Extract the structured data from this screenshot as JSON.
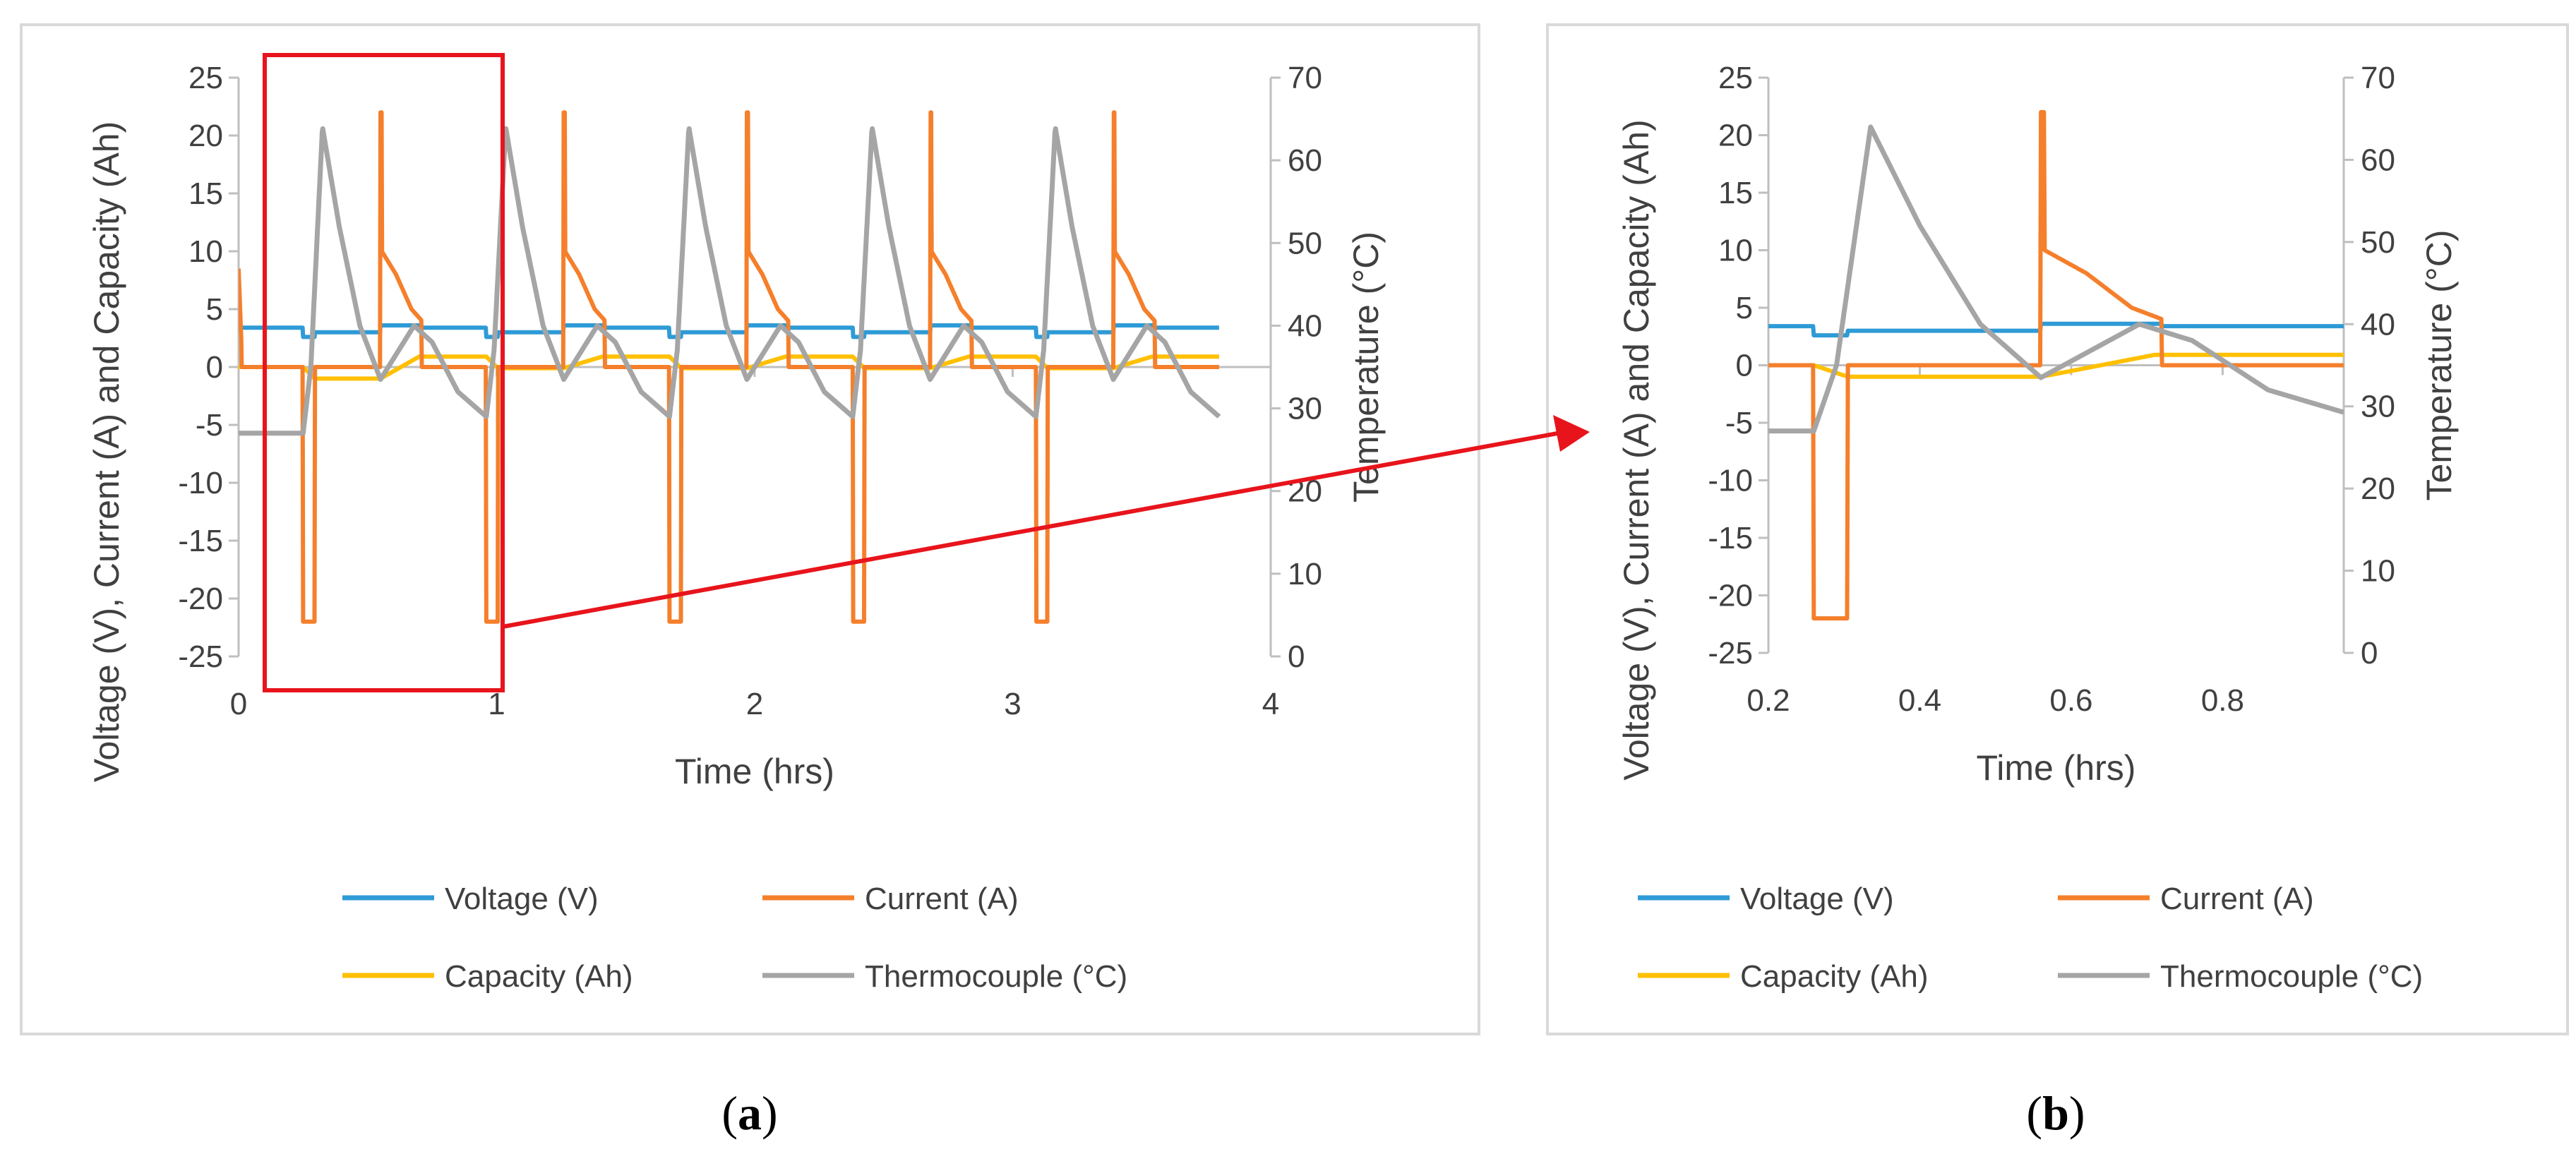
{
  "figure": {
    "captions": [
      {
        "prefix": "(",
        "letter": "a",
        "suffix": ")"
      },
      {
        "prefix": "(",
        "letter": "b",
        "suffix": ")"
      }
    ]
  },
  "colors": {
    "voltage": "#2E9BD6",
    "current": "#F57F2B",
    "capacity": "#FFC000",
    "thermocouple": "#A5A5A5",
    "highlight": "#E8141C",
    "axis": "#BFBFBF",
    "text": "#404040",
    "panel_border": "#D9D9D9"
  },
  "chart_data": [
    {
      "id": "a",
      "type": "line",
      "xlabel": "Time (hrs)",
      "ylabel": "Voltage (V), Current (A) and Capacity (Ah)",
      "y2label": "Temperature (°C)",
      "xlim": [
        0,
        4
      ],
      "xticks": [
        "0",
        "1",
        "2",
        "3",
        "4"
      ],
      "ylim": [
        -25,
        25
      ],
      "yticks": [
        "-25",
        "-20",
        "-15",
        "-10",
        "-5",
        "0",
        "5",
        "10",
        "15",
        "20",
        "25"
      ],
      "y2lim": [
        0,
        70
      ],
      "y2ticks": [
        "0",
        "10",
        "20",
        "30",
        "40",
        "50",
        "60",
        "70"
      ],
      "cycle": {
        "start_times": [
          0.25,
          0.96,
          1.67,
          2.38,
          3.09
        ],
        "period": 0.71,
        "end_time": 3.8
      },
      "legend": [
        "Voltage (V)",
        "Current (A)",
        "Capacity (Ah)",
        "Thermocouple (°C)"
      ],
      "legend_position": "bottom",
      "highlight_region": {
        "x": [
          0.1,
          1.0
        ],
        "y": [
          -25,
          25
        ]
      },
      "series": [
        {
          "name": "Voltage (V)",
          "axis": "left",
          "values": "~3.4 V rest, dips to ~2.6 V during each discharge pulse, ~3.6 V during charge"
        },
        {
          "name": "Current (A)",
          "axis": "left",
          "values": "discharge pulses to -22 A (~0.05 h), charge spike to 22 A then taper from ~10 A to ~4 A, then 0 A"
        },
        {
          "name": "Capacity (Ah)",
          "axis": "left",
          "values": "ramps between ~-1 Ah and ~1 Ah each cycle"
        },
        {
          "name": "Thermocouple (°C)",
          "axis": "right",
          "values": "starts ~27 °C, peaks ~64 °C after each pulse, dips ~33–34 °C, secondary bump ~40 °C, decays to ~29 °C"
        }
      ]
    },
    {
      "id": "b",
      "type": "line",
      "xlabel": "Time (hrs)",
      "ylabel": "Voltage (V), Current (A) and Capacity (Ah)",
      "y2label": "Temperature (°C)",
      "xlim": [
        0.2,
        0.96
      ],
      "xticks": [
        "0.2",
        "0.4",
        "0.6",
        "0.8"
      ],
      "xtick_values": [
        0.2,
        0.4,
        0.6,
        0.8
      ],
      "ylim": [
        -25,
        25
      ],
      "yticks": [
        "-25",
        "-20",
        "-15",
        "-10",
        "-5",
        "0",
        "5",
        "10",
        "15",
        "20",
        "25"
      ],
      "y2lim": [
        0,
        70
      ],
      "y2ticks": [
        "0",
        "10",
        "20",
        "30",
        "40",
        "50",
        "60",
        "70"
      ],
      "legend": [
        "Voltage (V)",
        "Current (A)",
        "Capacity (Ah)",
        "Thermocouple (°C)"
      ],
      "legend_position": "bottom",
      "series": [
        {
          "name": "Voltage (V)",
          "axis": "left",
          "values": "3.4 V, dip to 2.6 V at 0.26–0.30 h, ~3.6 V during charge, 3.4 V after"
        },
        {
          "name": "Current (A)",
          "axis": "left",
          "values": "0 A, -22 A at 0.26–0.305 h, spike 22 A at 0.557 h, taper ~10 → 4 A until 0.71 h, 0 A after"
        },
        {
          "name": "Capacity (Ah)",
          "axis": "left",
          "values": "0 Ah, down to ~-1 Ah after discharge, rises to ~1 Ah by 0.7 h"
        },
        {
          "name": "Thermocouple (°C)",
          "axis": "right",
          "values": "27 °C, peak 64 °C at 0.325 h, decays to ~34 °C at 0.56 h, bump ~40 °C at 0.69 h, ~29 °C at 0.96 h"
        }
      ]
    }
  ]
}
